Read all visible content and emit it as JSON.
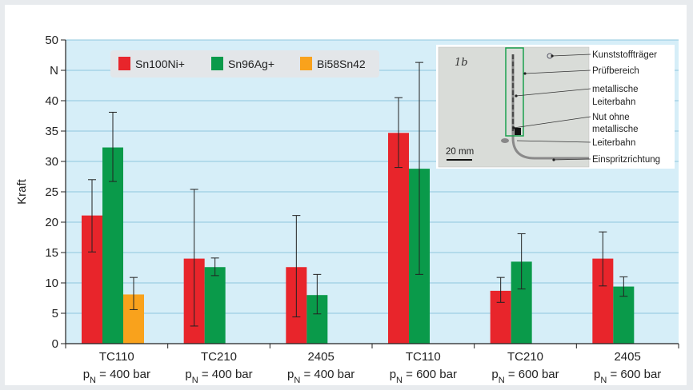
{
  "chart_data": {
    "type": "bar",
    "title": "",
    "xlabel": "",
    "ylabel": "Kraft",
    "ylim": [
      0,
      50
    ],
    "yticks": [
      "0",
      "5",
      "10",
      "15",
      "20",
      "25",
      "30",
      "35",
      "40",
      "N",
      "50"
    ],
    "grid": true,
    "legend": "top-left",
    "categories": [
      {
        "name": "TC110",
        "pressure_prefix": "p",
        "pressure_sub": "N",
        "pressure_suffix": " = 400 bar"
      },
      {
        "name": "TC210",
        "pressure_prefix": "p",
        "pressure_sub": "N",
        "pressure_suffix": " = 400 bar"
      },
      {
        "name": "2405",
        "pressure_prefix": "p",
        "pressure_sub": "N",
        "pressure_suffix": " = 400 bar"
      },
      {
        "name": "TC110",
        "pressure_prefix": "p",
        "pressure_sub": "N",
        "pressure_suffix": " = 600 bar"
      },
      {
        "name": "TC210",
        "pressure_prefix": "p",
        "pressure_sub": "N",
        "pressure_suffix": " = 600 bar"
      },
      {
        "name": "2405",
        "pressure_prefix": "p",
        "pressure_sub": "N",
        "pressure_suffix": " = 600 bar"
      }
    ],
    "series": [
      {
        "name": "Sn100Ni+",
        "color": "#e8252b",
        "values": [
          21.1,
          14.0,
          12.6,
          34.7,
          8.7,
          14.0
        ],
        "err_low": [
          15.1,
          2.9,
          4.4,
          29.0,
          6.8,
          9.5
        ],
        "err_high": [
          27.0,
          25.4,
          21.1,
          40.5,
          10.9,
          18.4
        ]
      },
      {
        "name": "Sn96Ag+",
        "color": "#0a9a4a",
        "values": [
          32.3,
          12.6,
          8.0,
          28.8,
          13.5,
          9.4
        ],
        "err_low": [
          26.7,
          11.2,
          4.9,
          11.4,
          9.0,
          7.8
        ],
        "err_high": [
          38.1,
          14.1,
          11.4,
          46.3,
          18.1,
          11.0
        ]
      },
      {
        "name": "Bi58Sn42",
        "color": "#f9a21c",
        "values": [
          8.1,
          null,
          null,
          null,
          null,
          null
        ],
        "err_low": [
          5.6,
          null,
          null,
          null,
          null,
          null
        ],
        "err_high": [
          10.9,
          null,
          null,
          null,
          null,
          null
        ]
      }
    ]
  },
  "inset": {
    "sample_label": "1b",
    "scale_bar": "20 mm",
    "annotations": [
      "Kunststoffträger",
      "Prüfbereich",
      "metallische",
      "Leiterbahn",
      "Nut ohne",
      "metallische",
      "Leiterbahn",
      "Einspritzrichtung"
    ]
  },
  "colors": {
    "plot_background": "#d6eef8",
    "gridline": "#8fc7de",
    "legend_background": "#e3e6e9",
    "frame_background": "#e8ebee"
  }
}
